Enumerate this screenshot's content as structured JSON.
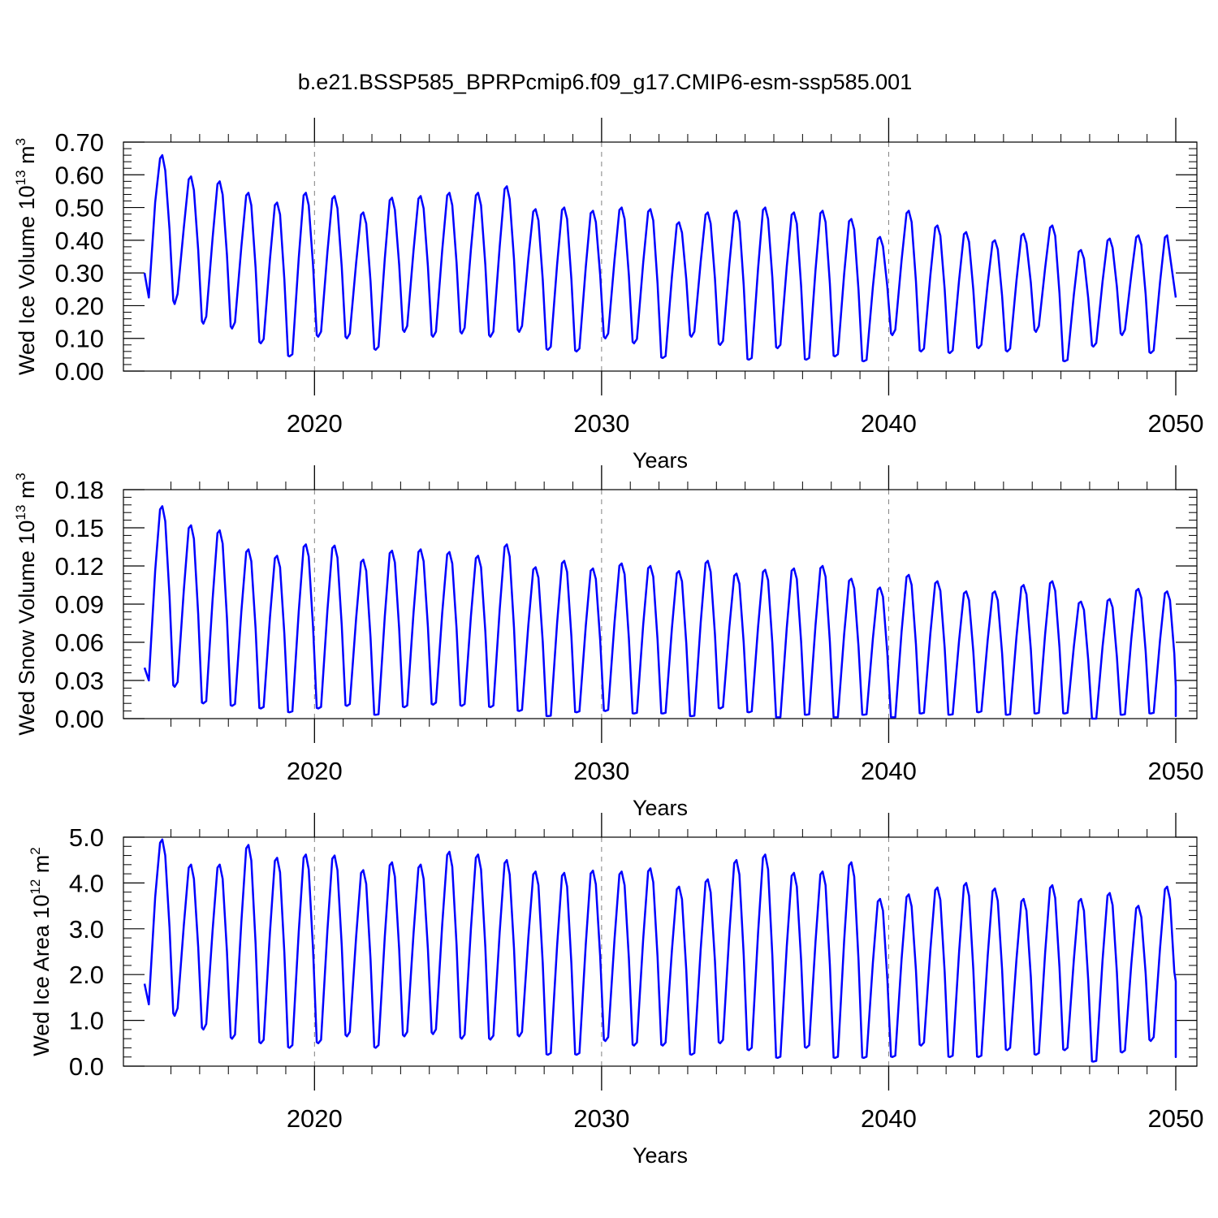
{
  "title": "b.e21.BSSP585_BPRPcmip6.f09_g17.CMIP6-esm-ssp585.001",
  "colors": {
    "line": "#0000ff",
    "axis": "#000000",
    "grid": "#808080"
  },
  "chart_data": [
    {
      "type": "line",
      "ylabel": {
        "main": "Wed Ice Volume 10",
        "exp": "13",
        "unit": " m",
        "unit_exp": "3"
      },
      "xlabel": "Years",
      "xlim": [
        2014.08,
        2050.0
      ],
      "ylim": [
        0.0,
        0.7
      ],
      "xticks": [
        2020,
        2030,
        2040,
        2050
      ],
      "yticks": [
        0.0,
        0.1,
        0.2,
        0.3,
        0.4,
        0.5,
        0.6,
        0.7
      ],
      "ytick_labels": [
        "0.00",
        "0.10",
        "0.20",
        "0.30",
        "0.40",
        "0.50",
        "0.60",
        "0.70"
      ],
      "grid_x": [
        2020,
        2030,
        2040
      ],
      "first_point": 0.3,
      "peaks": [
        0.66,
        0.595,
        0.58,
        0.545,
        0.515,
        0.545,
        0.535,
        0.485,
        0.53,
        0.535,
        0.545,
        0.545,
        0.565,
        0.495,
        0.5,
        0.49,
        0.5,
        0.495,
        0.455,
        0.485,
        0.49,
        0.5,
        0.485,
        0.49,
        0.465,
        0.41,
        0.49,
        0.445,
        0.425,
        0.4,
        0.42,
        0.445,
        0.37,
        0.405,
        0.415,
        0.415
      ],
      "troughs": [
        0.205,
        0.145,
        0.13,
        0.085,
        0.045,
        0.105,
        0.1,
        0.065,
        0.12,
        0.105,
        0.115,
        0.105,
        0.12,
        0.065,
        0.06,
        0.1,
        0.085,
        0.04,
        0.105,
        0.08,
        0.035,
        0.07,
        0.035,
        0.045,
        0.03,
        0.11,
        0.06,
        0.055,
        0.07,
        0.06,
        0.12,
        0.03,
        0.075,
        0.11,
        0.055
      ],
      "last_point": 0.225
    },
    {
      "type": "line",
      "ylabel": {
        "main": "Wed Snow Volume 10",
        "exp": "13",
        "unit": " m",
        "unit_exp": "3"
      },
      "xlabel": "Years",
      "xlim": [
        2014.08,
        2050.0
      ],
      "ylim": [
        0.0,
        0.18
      ],
      "xticks": [
        2020,
        2030,
        2040,
        2050
      ],
      "yticks": [
        0.0,
        0.03,
        0.06,
        0.09,
        0.12,
        0.15,
        0.18
      ],
      "ytick_labels": [
        "0.00",
        "0.03",
        "0.06",
        "0.09",
        "0.12",
        "0.15",
        "0.18"
      ],
      "grid_x": [
        2020,
        2030,
        2040
      ],
      "first_point": 0.04,
      "peaks": [
        0.167,
        0.152,
        0.148,
        0.133,
        0.128,
        0.137,
        0.136,
        0.125,
        0.132,
        0.133,
        0.131,
        0.128,
        0.137,
        0.119,
        0.124,
        0.118,
        0.122,
        0.12,
        0.116,
        0.124,
        0.114,
        0.117,
        0.118,
        0.12,
        0.11,
        0.103,
        0.113,
        0.108,
        0.1,
        0.1,
        0.105,
        0.108,
        0.092,
        0.094,
        0.102,
        0.1
      ],
      "troughs": [
        0.025,
        0.012,
        0.01,
        0.008,
        0.005,
        0.008,
        0.01,
        0.003,
        0.009,
        0.011,
        0.01,
        0.009,
        0.006,
        0.002,
        0.005,
        0.006,
        0.004,
        0.004,
        0.002,
        0.008,
        0.005,
        0.001,
        0.003,
        0.001,
        0.003,
        0.001,
        0.004,
        0.003,
        0.005,
        0.003,
        0.004,
        0.004,
        0.0,
        0.003,
        0.004,
        0.002
      ],
      "last_point": 0.025
    },
    {
      "type": "line",
      "ylabel": {
        "main": "Wed Ice Area 10",
        "exp": "12",
        "unit": " m",
        "unit_exp": "2"
      },
      "xlabel": "Years",
      "xlim": [
        2014.08,
        2050.0
      ],
      "ylim": [
        0.0,
        5.0
      ],
      "xticks": [
        2020,
        2030,
        2040,
        2050
      ],
      "yticks": [
        0.0,
        1.0,
        2.0,
        3.0,
        4.0,
        5.0
      ],
      "ytick_labels": [
        "0.0",
        "1.0",
        "2.0",
        "3.0",
        "4.0",
        "5.0"
      ],
      "grid_x": [
        2020,
        2030,
        2040
      ],
      "first_point": 1.8,
      "peaks": [
        4.95,
        4.4,
        4.4,
        4.83,
        4.55,
        4.62,
        4.6,
        4.28,
        4.45,
        4.4,
        4.68,
        4.62,
        4.5,
        4.25,
        4.22,
        4.27,
        4.25,
        4.32,
        3.92,
        4.08,
        4.5,
        4.62,
        4.22,
        4.25,
        4.45,
        3.65,
        3.75,
        3.9,
        4.0,
        3.88,
        3.65,
        3.95,
        3.65,
        3.78,
        3.5,
        3.92
      ],
      "troughs": [
        1.1,
        0.8,
        0.6,
        0.5,
        0.4,
        0.5,
        0.65,
        0.4,
        0.65,
        0.7,
        0.6,
        0.58,
        0.65,
        0.25,
        0.25,
        0.55,
        0.45,
        0.45,
        0.25,
        0.5,
        0.35,
        0.18,
        0.4,
        0.18,
        0.18,
        0.2,
        0.45,
        0.2,
        0.2,
        0.35,
        0.25,
        0.35,
        0.1,
        0.3,
        0.55,
        0.2
      ],
      "last_point": 1.85
    }
  ]
}
